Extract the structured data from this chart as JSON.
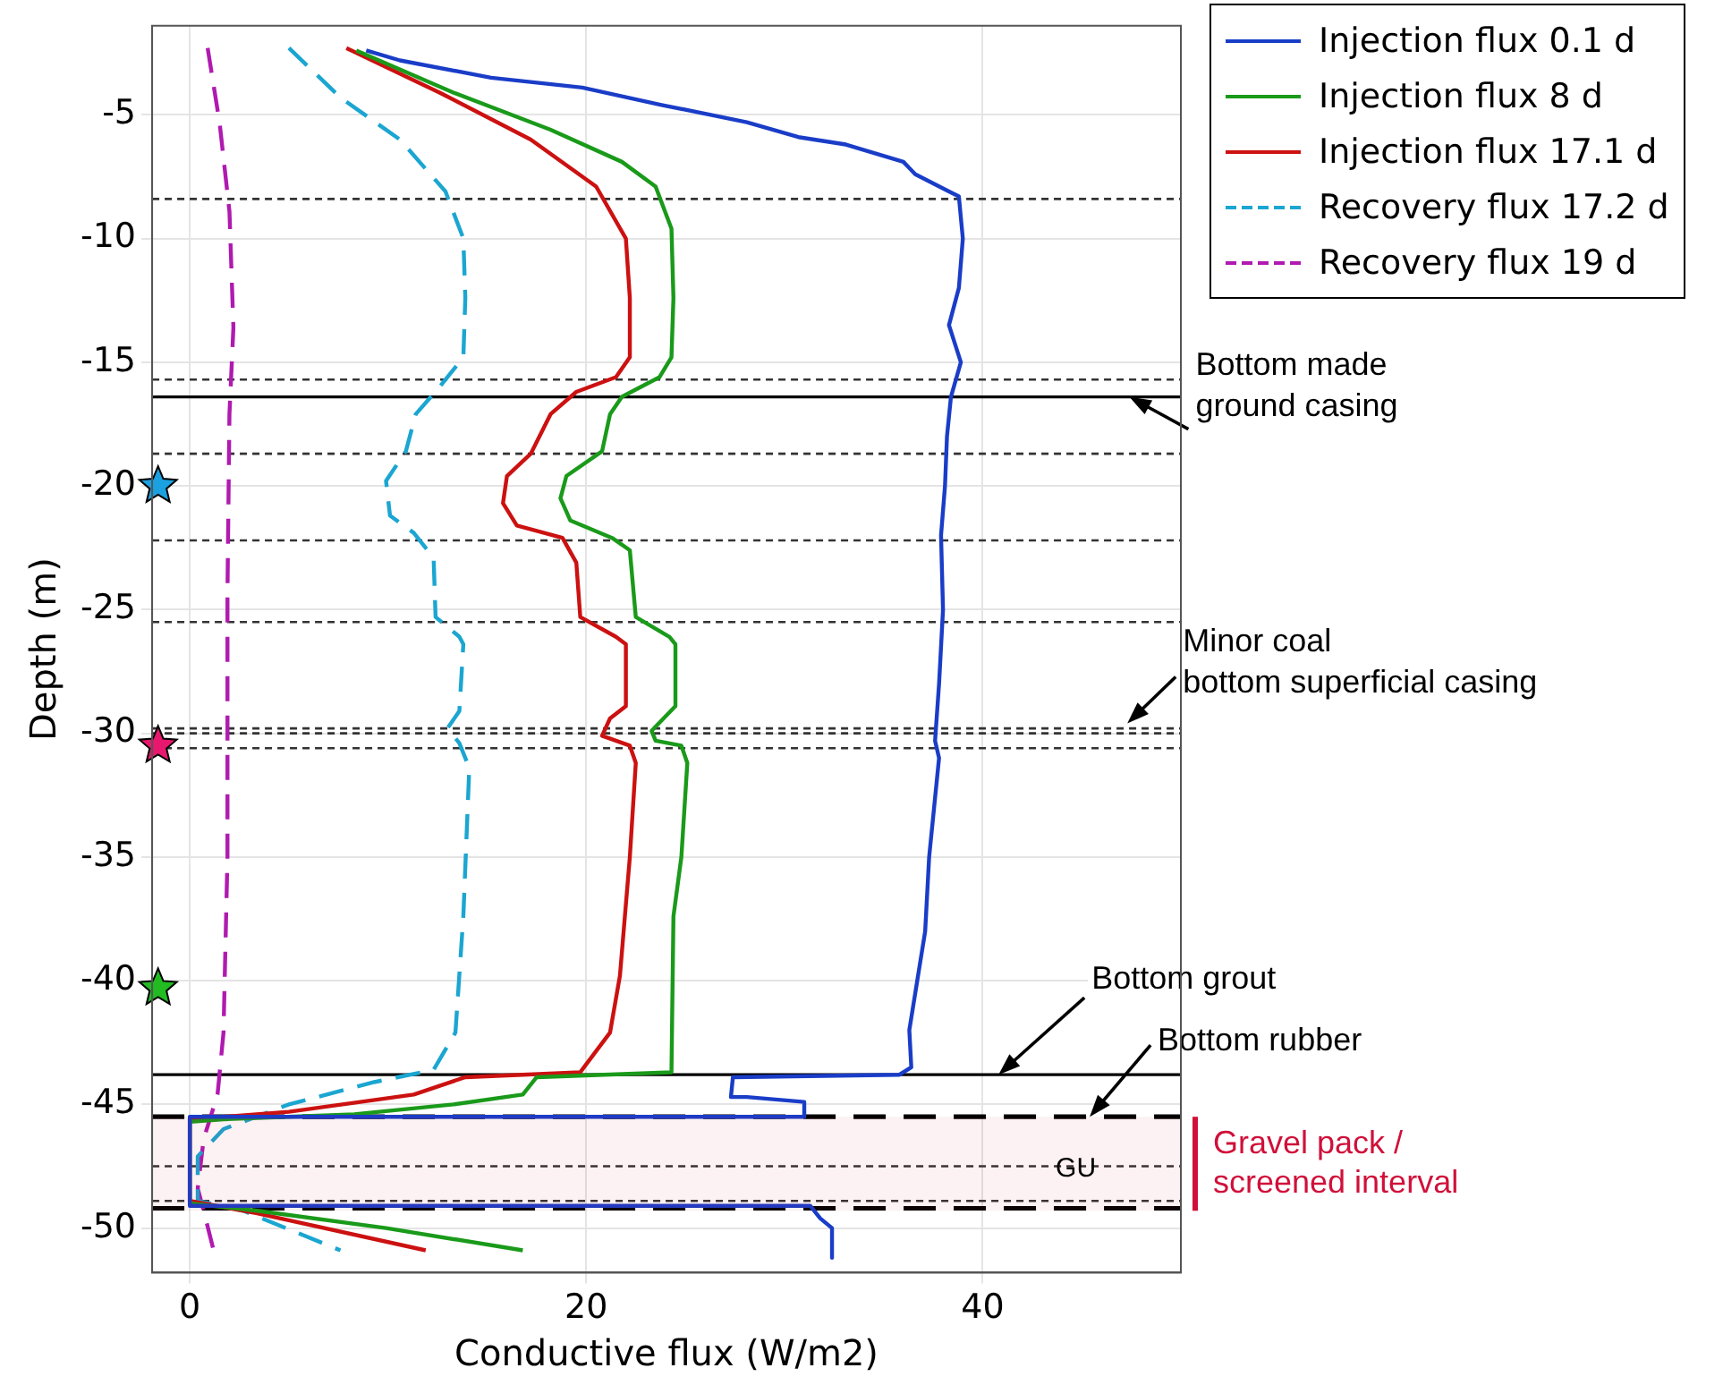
{
  "chart_data": {
    "type": "line",
    "xlabel": "Conductive flux (W/m2)",
    "ylabel": "Depth (m)",
    "xlim": [
      -1.9,
      50
    ],
    "ylim": [
      -51.8,
      -1.4
    ],
    "xticks": [
      0,
      20,
      40
    ],
    "yticks": [
      -5,
      -10,
      -15,
      -20,
      -25,
      -30,
      -35,
      -40,
      -45,
      -50
    ],
    "grid": true,
    "legend": "top right",
    "series": [
      {
        "name": "Injection flux 0.1 d",
        "color": "#1a3dc8",
        "line_style": "solid",
        "x": [
          8.9,
          10.6,
          15.2,
          19.8,
          23.8,
          28.1,
          30.7,
          33.1,
          36.0,
          36.6,
          38.3,
          38.8,
          39.0,
          38.8,
          38.3,
          38.9,
          38.4,
          38.2,
          38.1,
          37.9,
          38.0,
          37.8,
          37.6,
          37.8,
          37.3,
          37.1,
          36.7,
          36.3,
          36.4,
          35.8,
          27.4,
          27.3,
          28.1,
          31.0,
          31.0,
          0,
          0,
          31.3,
          31.8,
          32.4,
          32.4
        ],
        "values": [
          -2.4,
          -2.8,
          -3.5,
          -3.9,
          -4.6,
          -5.3,
          -5.9,
          -6.2,
          -6.9,
          -7.4,
          -8.1,
          -8.3,
          -10,
          -12,
          -13.5,
          -15,
          -16.4,
          -18,
          -20,
          -22,
          -25,
          -28,
          -30.3,
          -31,
          -35,
          -38,
          -40,
          -42,
          -43.5,
          -43.8,
          -43.9,
          -44.7,
          -44.7,
          -44.9,
          -45.5,
          -45.5,
          -49.1,
          -49.1,
          -49.6,
          -50.0,
          -51.2
        ]
      },
      {
        "name": "Injection flux 8 d",
        "color": "#1a9a1a",
        "line_style": "solid",
        "x": [
          8.4,
          13.3,
          18.2,
          21.8,
          23.5,
          24.3,
          24.4,
          24.3,
          23.7,
          21.8,
          21.2,
          20.8,
          19.0,
          18.7,
          19.2,
          21.3,
          22.2,
          22.5,
          24.2,
          24.5,
          24.5,
          23.9,
          23.3,
          23.5,
          24.8,
          25.1,
          24.8,
          24.4,
          24.3,
          17.5,
          16.8,
          13.3,
          8.3,
          1.7,
          0,
          0,
          3.4,
          9.9,
          16.8
        ],
        "values": [
          -2.4,
          -4.1,
          -5.6,
          -6.9,
          -7.9,
          -9.6,
          -12.4,
          -14.8,
          -15.6,
          -16.4,
          -17.1,
          -18.6,
          -19.6,
          -20.5,
          -21.4,
          -22.1,
          -22.6,
          -25.3,
          -26.1,
          -26.4,
          -28.9,
          -29.4,
          -29.9,
          -30.3,
          -30.5,
          -31.2,
          -35.0,
          -37.4,
          -43.7,
          -43.9,
          -44.6,
          -45.0,
          -45.4,
          -45.6,
          -45.7,
          -49.0,
          -49.3,
          -50.0,
          -50.9
        ]
      },
      {
        "name": "Injection flux 17.1 d",
        "color": "#cc1111",
        "line_style": "solid",
        "x": [
          7.9,
          12.6,
          17.2,
          20.5,
          22.0,
          22.2,
          22.2,
          21.5,
          19.5,
          18.2,
          17.2,
          16.0,
          15.8,
          16.5,
          18.8,
          19.5,
          19.7,
          21.5,
          22.0,
          22.0,
          21.2,
          20.8,
          22.2,
          22.5,
          22.2,
          21.7,
          21.2,
          19.7,
          13.9,
          11.3,
          5.0,
          0,
          0,
          3.4,
          11.9
        ],
        "values": [
          -2.3,
          -4.1,
          -6.0,
          -7.9,
          -10.0,
          -12.4,
          -14.8,
          -15.6,
          -16.2,
          -17.1,
          -18.7,
          -19.6,
          -20.7,
          -21.6,
          -22.1,
          -23.1,
          -25.3,
          -26.1,
          -26.4,
          -28.9,
          -29.4,
          -30.1,
          -30.5,
          -31.2,
          -35.0,
          -39.8,
          -42.1,
          -43.7,
          -43.9,
          -44.6,
          -45.3,
          -45.6,
          -48.9,
          -49.4,
          -50.9
        ]
      },
      {
        "name": "Recovery flux 17.2 d",
        "color": "#1ba6d1",
        "line_style": "dashed",
        "x": [
          5.0,
          7.6,
          10.6,
          12.9,
          13.8,
          13.9,
          13.8,
          12.6,
          11.4,
          10.9,
          9.9,
          10.1,
          11.3,
          12.3,
          12.4,
          13.6,
          13.8,
          13.6,
          13.0,
          13.6,
          14.1,
          13.8,
          13.4,
          12.3,
          9.3,
          5.0,
          1.7,
          0.4,
          0.4,
          2.7,
          7.6
        ],
        "values": [
          -2.3,
          -4.3,
          -6.0,
          -8.1,
          -10.0,
          -12.4,
          -14.8,
          -16.0,
          -17.1,
          -18.6,
          -19.8,
          -21.2,
          -21.9,
          -22.9,
          -25.3,
          -26.1,
          -26.4,
          -29.1,
          -29.8,
          -30.4,
          -31.4,
          -37.4,
          -42.1,
          -43.6,
          -44.1,
          -45.0,
          -46.0,
          -47.1,
          -48.9,
          -49.3,
          -50.9
        ]
      },
      {
        "name": "Recovery flux 19 d",
        "color": "#b01ab0",
        "line_style": "dashed",
        "x": [
          0.9,
          1.5,
          2.0,
          2.2,
          2.0,
          1.9,
          1.9,
          1.9,
          1.7,
          1.4,
          0.7,
          0.4,
          0.7,
          1.2
        ],
        "values": [
          -2.3,
          -5.3,
          -8.9,
          -13.6,
          -17.1,
          -24.3,
          -27.9,
          -35.0,
          -42.1,
          -44.6,
          -46.4,
          -48.4,
          -49.3,
          -50.9
        ]
      },
      {
        "type": "scatter",
        "marker": "star",
        "colors": [
          "#1ba0e0",
          "#e8186e",
          "#22bb22"
        ],
        "x": [
          -1.6,
          -1.6,
          -1.6
        ],
        "values": [
          -20,
          -30.5,
          -40.3
        ]
      }
    ],
    "ref_lines": [
      {
        "axis": "y",
        "value": -8.4,
        "color": "#333333",
        "line_style": "dotted"
      },
      {
        "axis": "y",
        "value": -15.7,
        "color": "#333333",
        "line_style": "dotted"
      },
      {
        "axis": "y",
        "value": -16.4,
        "color": "#000000",
        "line_style": "solid"
      },
      {
        "axis": "y",
        "value": -18.7,
        "color": "#333333",
        "line_style": "dotted"
      },
      {
        "axis": "y",
        "value": -22.2,
        "color": "#333333",
        "line_style": "dotted"
      },
      {
        "axis": "y",
        "value": -25.5,
        "color": "#333333",
        "line_style": "dotted"
      },
      {
        "axis": "y",
        "value": -29.8,
        "color": "#333333",
        "line_style": "dotted"
      },
      {
        "axis": "y",
        "value": -30.0,
        "color": "#333333",
        "line_style": "dotted"
      },
      {
        "axis": "y",
        "value": -30.6,
        "color": "#333333",
        "line_style": "dotted"
      },
      {
        "axis": "y",
        "value": -43.8,
        "color": "#000000",
        "line_style": "solid"
      },
      {
        "axis": "y",
        "value": -45.5,
        "color": "#000000",
        "line_style": "dashed"
      },
      {
        "axis": "y",
        "value": -47.5,
        "color": "#333333",
        "line_style": "dotted"
      },
      {
        "axis": "y",
        "value": -48.9,
        "color": "#333333",
        "line_style": "dotted"
      },
      {
        "axis": "y",
        "value": -49.2,
        "color": "#000000",
        "line_style": "dashed"
      }
    ],
    "bands": [
      {
        "axis": "y",
        "from": -45.5,
        "to": -49.3,
        "label": "Gravel pack /\nscreened interval",
        "color": "#d0103a"
      }
    ],
    "annotations": [
      {
        "text": "Bottom made\nground casing",
        "x": 47.4,
        "y": -16.4
      },
      {
        "text": "Minor coal\nbottom superficial casing",
        "x": 47.3,
        "y": -29.6
      },
      {
        "text": "Bottom grout",
        "x": 40.8,
        "y": -43.8
      },
      {
        "text": "Bottom rubber",
        "x": 45.4,
        "y": -45.5
      },
      {
        "text": "GU",
        "x": 44.7,
        "y": -47.6
      }
    ]
  }
}
